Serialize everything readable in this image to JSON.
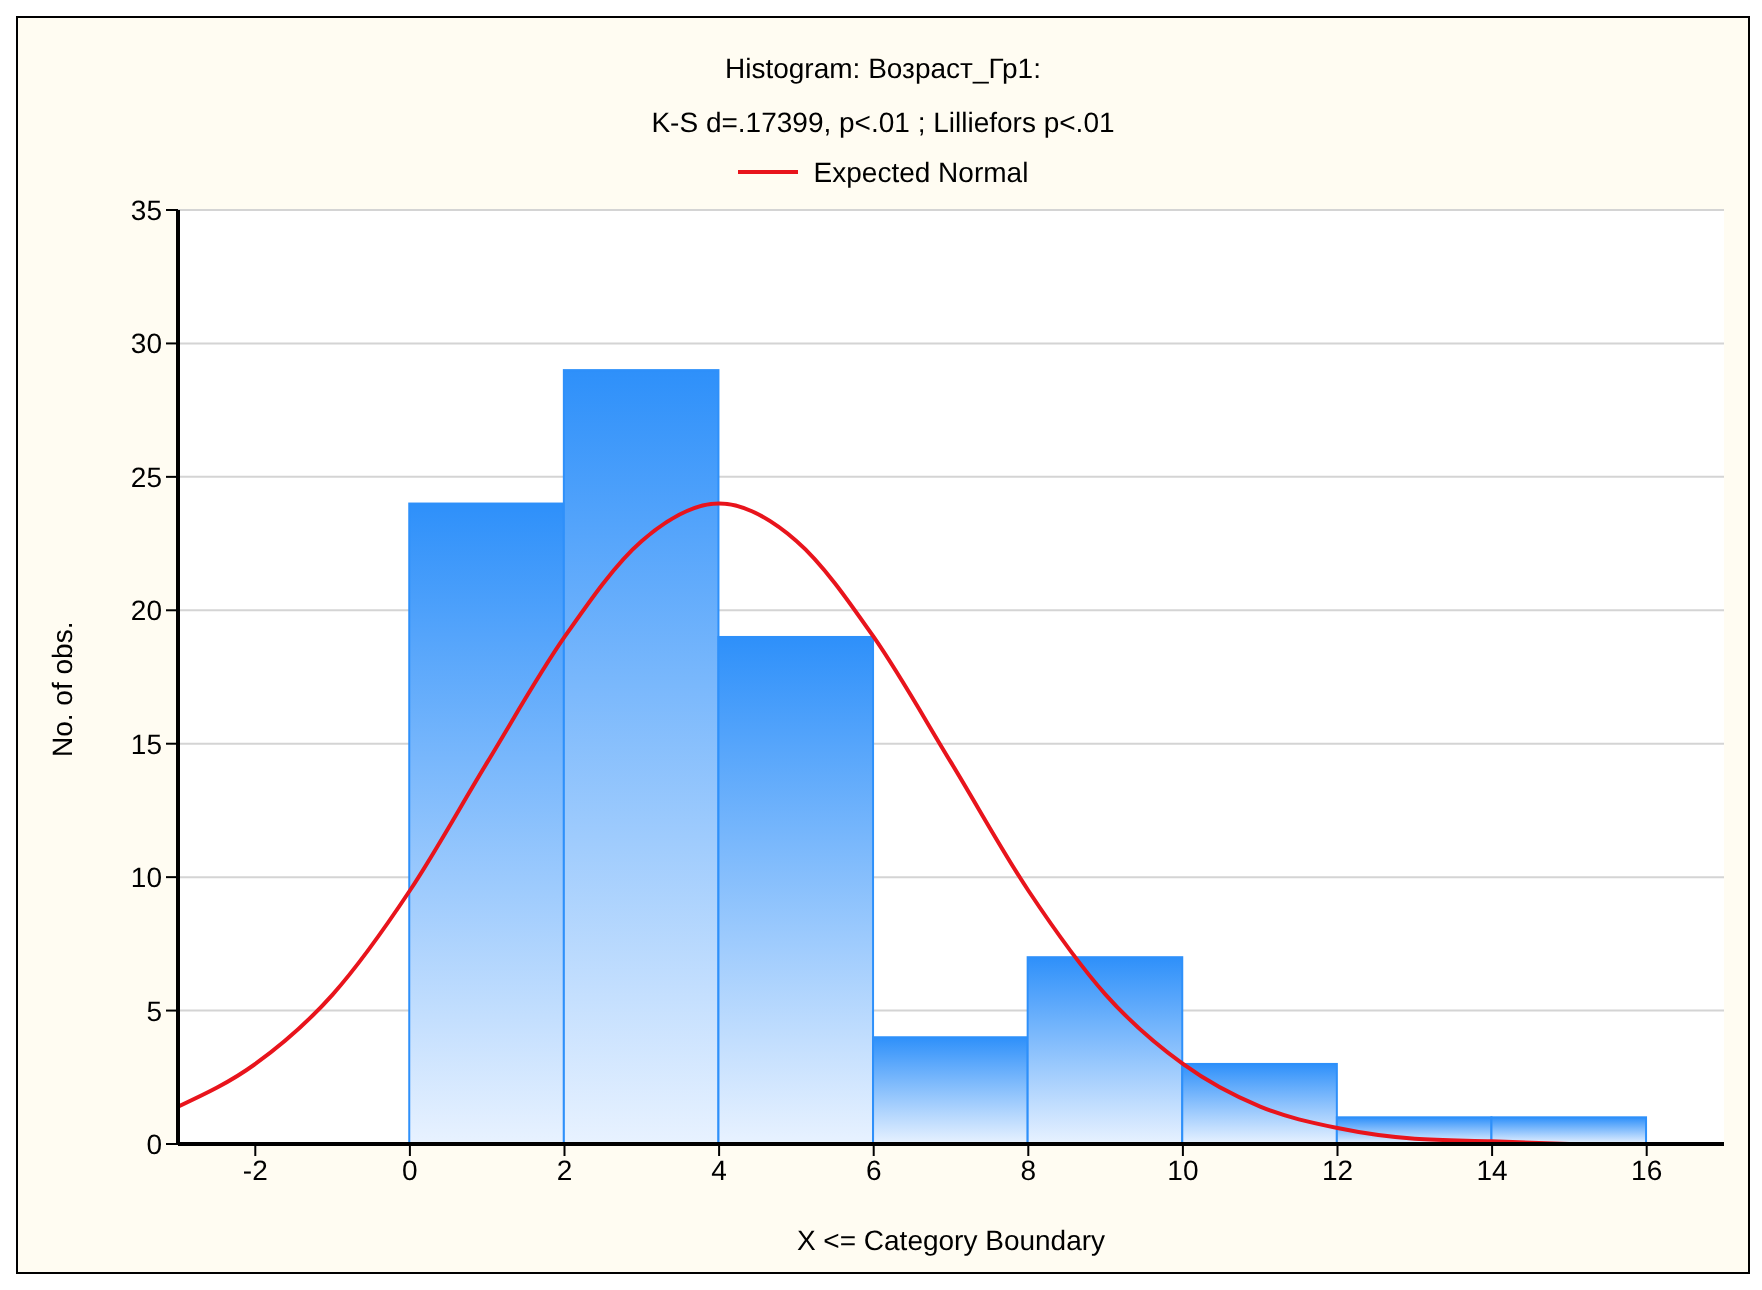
{
  "chart_data": {
    "type": "histogram",
    "title": "Histogram: Возраст_Гр1:",
    "subtitle": "K-S d=.17399, p<.01 ; Lilliefors p<.01",
    "xlabel": "X <= Category Boundary",
    "ylabel": "No. of obs.",
    "bins": [
      -2,
      0,
      2,
      4,
      6,
      8,
      10,
      12,
      14,
      16
    ],
    "values": [
      0,
      24,
      29,
      19,
      4,
      7,
      3,
      1,
      1
    ],
    "color": "#2e90fa",
    "series": [
      {
        "type": "line",
        "name": "Expected Normal",
        "color": "#e8141c",
        "x": [
          -3,
          -2,
          -1,
          0,
          1,
          2,
          3,
          4,
          5,
          6,
          7,
          8,
          9,
          10,
          11,
          12,
          13,
          14,
          15
        ],
        "values": [
          1.4,
          3,
          5.6,
          9.5,
          14.3,
          19,
          22.6,
          24,
          22.6,
          19,
          14.3,
          9.5,
          5.6,
          3,
          1.4,
          0.6,
          0.2,
          0.1,
          0
        ]
      }
    ],
    "xlim": [
      -3,
      17
    ],
    "xticks": [
      -2,
      0,
      2,
      4,
      6,
      8,
      10,
      12,
      14,
      16
    ],
    "ylim": [
      0,
      35
    ],
    "yticks": [
      0,
      5,
      10,
      15,
      20,
      25,
      30,
      35
    ],
    "grid": "y",
    "legend": "top",
    "marker": "none",
    "line_style": "solid"
  }
}
